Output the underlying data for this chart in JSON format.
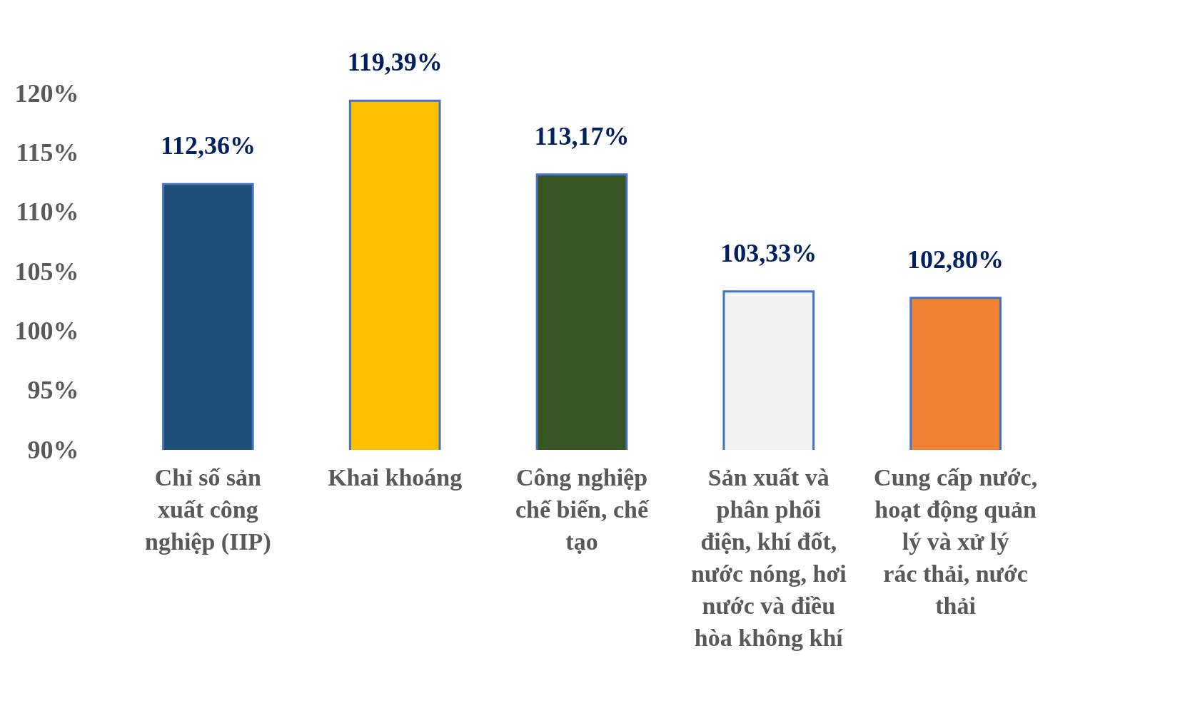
{
  "chart_data": {
    "type": "bar",
    "categories": [
      "Chỉ số sản xuất công nghiệp (IIP)",
      "Khai khoáng",
      "Công nghiệp chế biến, chế tạo",
      "Sản xuất và phân phối điện, khí đốt, nước nóng, hơi nước và điều hòa không khí",
      "Cung cấp nước, hoạt động quản lý và xử lý rác thải, nước thải"
    ],
    "values": [
      112.36,
      119.39,
      113.17,
      103.33,
      102.8
    ],
    "value_labels": [
      "112,36%",
      "119,39%",
      "113,17%",
      "103,33%",
      "102,80%"
    ],
    "colors": [
      "#1f4e79",
      "#ffc000",
      "#375623",
      "#f2f2f2",
      "#f08234"
    ],
    "ylim": [
      90,
      120
    ],
    "yticks": [
      {
        "value": 90,
        "label": "90%"
      },
      {
        "value": 95,
        "label": "95%"
      },
      {
        "value": 100,
        "label": "100%"
      },
      {
        "value": 105,
        "label": "105%"
      },
      {
        "value": 110,
        "label": "110%"
      },
      {
        "value": 115,
        "label": "115%"
      },
      {
        "value": 120,
        "label": "120%"
      }
    ],
    "grid": false
  }
}
